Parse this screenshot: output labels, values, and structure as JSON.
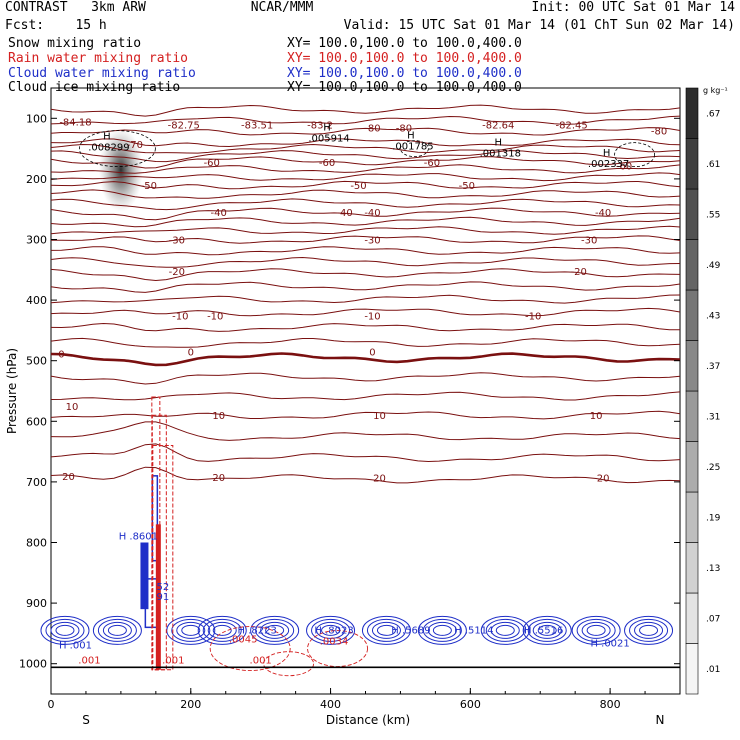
{
  "header": {
    "model": "CONTRAST   3km ARW",
    "org": "NCAR/MMM",
    "init": "Init: 00 UTC Sat 01 Mar 14",
    "fcst": "Fcst:    15 h",
    "valid": "Valid: 15 UTC Sat 01 Mar 14 (01 ChT Sun 02 Mar 14)"
  },
  "fields": [
    {
      "name": "Snow mixing ratio",
      "xy": "XY= 100.0,100.0 to 100.0,400.0",
      "color": "#000000"
    },
    {
      "name": "Rain water mixing ratio",
      "xy": "XY= 100.0,100.0 to 100.0,400.0",
      "color": "#d42020"
    },
    {
      "name": "Cloud water mixing ratio",
      "xy": "XY= 100.0,100.0 to 100.0,400.0",
      "color": "#1f2fc8"
    },
    {
      "name": "Cloud ice mixing ratio",
      "xy": "XY= 100.0,100.0 to 100.0,400.0",
      "color": "#000000"
    }
  ],
  "chart_data": {
    "type": "heatmap",
    "xlabel": "Distance (km)",
    "ylabel": "Pressure (hPa)",
    "xlim": [
      0,
      900
    ],
    "ylim": [
      1050,
      50
    ],
    "x_ticks": [
      0,
      200,
      400,
      600,
      800
    ],
    "y_ticks": [
      100,
      200,
      300,
      400,
      500,
      600,
      700,
      800,
      900,
      1000
    ],
    "left_end": "S",
    "right_end": "N",
    "temperature_isotherms": [
      {
        "value": -80,
        "label": "-80",
        "p": 85
      },
      {
        "value": -70,
        "label": "-70",
        "p": 140
      },
      {
        "value": -60,
        "label": "-60",
        "p": 170
      },
      {
        "value": -50,
        "label": "-50",
        "p": 210
      },
      {
        "value": -40,
        "label": "-40",
        "p": 255
      },
      {
        "value": -30,
        "label": "-30",
        "p": 300
      },
      {
        "value": -20,
        "label": "-20",
        "p": 355
      },
      {
        "value": -10,
        "label": "-10",
        "p": 420
      },
      {
        "value": 0,
        "label": "0",
        "p": 495
      },
      {
        "value": 10,
        "label": "10",
        "p": 590
      },
      {
        "value": 20,
        "label": "20",
        "p": 695
      }
    ],
    "temperature_labels": [
      {
        "text": "-84.18",
        "x": 35,
        "p": 105
      },
      {
        "text": "-82.75",
        "x": 190,
        "p": 110
      },
      {
        "text": "-83.51",
        "x": 295,
        "p": 110
      },
      {
        "text": "-83.2",
        "x": 385,
        "p": 110
      },
      {
        "text": "-80",
        "x": 460,
        "p": 115
      },
      {
        "text": "-80",
        "x": 505,
        "p": 115
      },
      {
        "text": "-82.64",
        "x": 640,
        "p": 110
      },
      {
        "text": "-82.45",
        "x": 745,
        "p": 110
      },
      {
        "text": "-80",
        "x": 870,
        "p": 120
      },
      {
        "text": "-70",
        "x": 120,
        "p": 142
      },
      {
        "text": "-60",
        "x": 230,
        "p": 172
      },
      {
        "text": "-60",
        "x": 395,
        "p": 172
      },
      {
        "text": "-60",
        "x": 545,
        "p": 172
      },
      {
        "text": "-60",
        "x": 820,
        "p": 178
      },
      {
        "text": "-50",
        "x": 140,
        "p": 210
      },
      {
        "text": "-50",
        "x": 440,
        "p": 210
      },
      {
        "text": "-50",
        "x": 595,
        "p": 210
      },
      {
        "text": "-40",
        "x": 240,
        "p": 255
      },
      {
        "text": "-40",
        "x": 420,
        "p": 255
      },
      {
        "text": "-40",
        "x": 460,
        "p": 255
      },
      {
        "text": "-40",
        "x": 790,
        "p": 255
      },
      {
        "text": "-30",
        "x": 180,
        "p": 300
      },
      {
        "text": "-30",
        "x": 460,
        "p": 300
      },
      {
        "text": "-30",
        "x": 770,
        "p": 300
      },
      {
        "text": "-20",
        "x": 180,
        "p": 352
      },
      {
        "text": "-20",
        "x": 755,
        "p": 352
      },
      {
        "text": "-10",
        "x": 185,
        "p": 425
      },
      {
        "text": "-10",
        "x": 235,
        "p": 425
      },
      {
        "text": "-10",
        "x": 460,
        "p": 425
      },
      {
        "text": "-10",
        "x": 690,
        "p": 425
      },
      {
        "text": "0",
        "x": 15,
        "p": 488
      },
      {
        "text": "0",
        "x": 200,
        "p": 485
      },
      {
        "text": "0",
        "x": 460,
        "p": 485
      },
      {
        "text": "10",
        "x": 30,
        "p": 575
      },
      {
        "text": "10",
        "x": 240,
        "p": 590
      },
      {
        "text": "10",
        "x": 470,
        "p": 590
      },
      {
        "text": "10",
        "x": 780,
        "p": 590
      },
      {
        "text": "20",
        "x": 25,
        "p": 690
      },
      {
        "text": "20",
        "x": 240,
        "p": 692
      },
      {
        "text": "20",
        "x": 470,
        "p": 693
      },
      {
        "text": "20",
        "x": 790,
        "p": 693
      }
    ],
    "snow_field_labels": [
      {
        "kind": "H",
        "value": ".008299",
        "x": 80,
        "p": 135
      },
      {
        "kind": "H",
        "value": ".005914",
        "x": 395,
        "p": 120
      },
      {
        "kind": "H",
        "value": ".001785",
        "x": 515,
        "p": 133
      },
      {
        "kind": "H",
        "value": ".001318",
        "x": 640,
        "p": 145
      },
      {
        "kind": "H",
        "value": ".002337",
        "x": 795,
        "p": 162
      }
    ],
    "cloud_water_labels": [
      {
        "kind": "H",
        "value": ".8601",
        "x": 125,
        "p": 795
      },
      {
        "kind": "H",
        "value": ".8223",
        "x": 295,
        "p": 950
      },
      {
        "kind": "H",
        "value": ".8023",
        "x": 405,
        "p": 950
      },
      {
        "kind": "H",
        "value": ".5689",
        "x": 515,
        "p": 950
      },
      {
        "kind": "H",
        "value": ".5114",
        "x": 605,
        "p": 950
      },
      {
        "kind": "H",
        "value": ".5516",
        "x": 705,
        "p": 950
      },
      {
        "kind": "H",
        "value": ".0021",
        "x": 800,
        "p": 972
      },
      {
        "kind": "H",
        "value": ".001",
        "x": 35,
        "p": 975
      },
      {
        "kind": "value",
        "value": "52",
        "x": 160,
        "p": 878
      },
      {
        "kind": "value",
        "value": "91",
        "x": 160,
        "p": 895
      }
    ],
    "rain_labels": [
      {
        "value": ".0045",
        "x": 275,
        "p": 965
      },
      {
        "value": ".0034",
        "x": 405,
        "p": 968
      },
      {
        "value": ".001",
        "x": 55,
        "p": 1000
      },
      {
        "value": ".001",
        "x": 175,
        "p": 1000
      },
      {
        "value": ".001",
        "x": 300,
        "p": 1000
      }
    ],
    "colorbar": {
      "unit": "g kg⁻¹",
      "levels": [
        ".01",
        ".07",
        ".13",
        ".19",
        ".25",
        ".31",
        ".37",
        ".43",
        ".49",
        ".55",
        ".61",
        ".67"
      ]
    },
    "grid": false
  }
}
